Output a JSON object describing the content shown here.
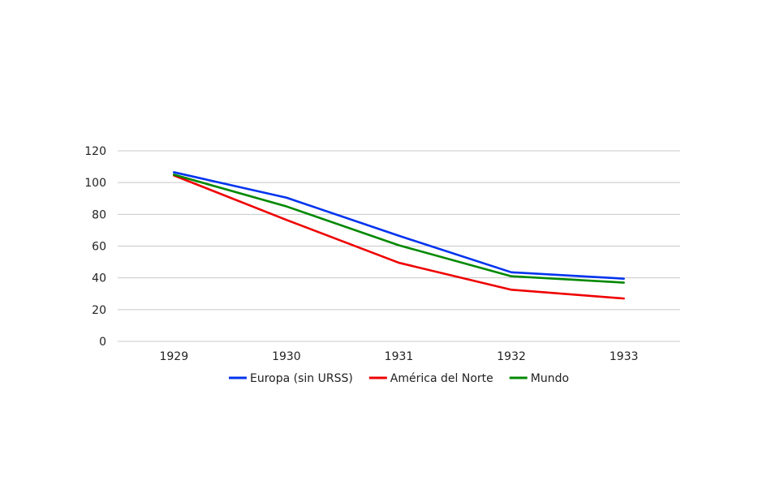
{
  "chart_data": {
    "type": "line",
    "title": "",
    "xlabel": "",
    "ylabel": "",
    "categories": [
      "1929",
      "1930",
      "1931",
      "1932",
      "1933"
    ],
    "ylim": [
      0,
      120
    ],
    "yticks": [
      0,
      20,
      40,
      60,
      80,
      100,
      120
    ],
    "grid": true,
    "legend_position": "bottom",
    "series": [
      {
        "name": "Europa (sin URSS)",
        "color": "#0033ee",
        "values": [
          106.5,
          90.5,
          66.5,
          43.5,
          39.5
        ]
      },
      {
        "name": "América del Norte",
        "color": "#ee0000",
        "values": [
          104.5,
          76.5,
          49.5,
          32.5,
          27
        ]
      },
      {
        "name": "Mundo",
        "color": "#008800",
        "values": [
          105,
          85,
          60.5,
          41,
          37
        ]
      }
    ]
  }
}
